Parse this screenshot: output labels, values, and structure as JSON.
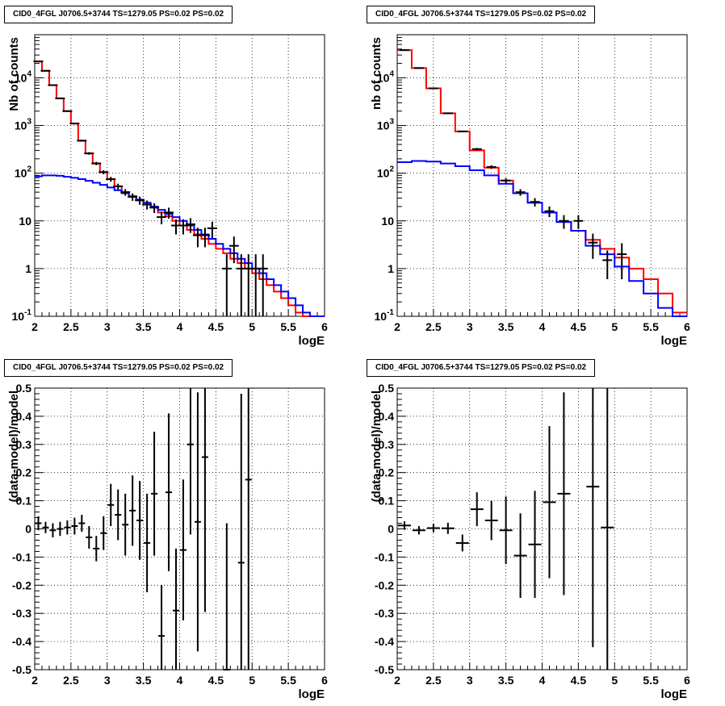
{
  "chart_data": [
    {
      "type": "line",
      "title": "CID0_4FGL J0706.5+3744 TS=1279.05 PS=0.02 PS=0.02",
      "xlabel": "logE",
      "ylabel": "Nb of counts",
      "xlim": [
        2,
        6
      ],
      "ylim": [
        0.1,
        80000
      ],
      "yscale": "log",
      "grid": true,
      "x_ticks": [
        "2",
        "2.5",
        "3",
        "3.5",
        "4",
        "4.5",
        "5",
        "5.5",
        "6"
      ],
      "y_ticks": [
        "10^-1",
        "1",
        "10",
        "10^2",
        "10^3",
        "10^4"
      ],
      "series": [
        {
          "color": "#ff0000",
          "kind": "step",
          "edges": [
            2.0,
            2.1,
            2.2,
            2.3,
            2.4,
            2.5,
            2.6,
            2.7,
            2.8,
            2.9,
            3.0,
            3.1,
            3.2,
            3.3,
            3.4,
            3.5,
            3.6,
            3.7,
            3.8,
            3.9,
            4.0,
            4.1,
            4.2,
            4.3,
            4.4,
            4.5,
            4.6,
            4.7,
            4.8,
            4.9,
            5.0,
            5.1,
            5.2,
            5.3,
            5.4,
            5.5,
            5.6,
            5.7,
            5.8,
            5.9,
            6.0
          ],
          "values": [
            22000,
            14000,
            7000,
            3700,
            2000,
            1100,
            480,
            260,
            160,
            105,
            75,
            53,
            40,
            32,
            27,
            22,
            19,
            15,
            12.5,
            10,
            8,
            6.5,
            5.2,
            4.2,
            3.3,
            2.6,
            2.1,
            1.6,
            1.3,
            1.0,
            0.8,
            0.6,
            0.45,
            0.33,
            0.24,
            0.17,
            0.12,
            0.1,
            0.1,
            0.1
          ]
        },
        {
          "color": "#0000ff",
          "kind": "step",
          "edges": [
            2.0,
            2.1,
            2.2,
            2.3,
            2.4,
            2.5,
            2.6,
            2.7,
            2.8,
            2.9,
            3.0,
            3.1,
            3.2,
            3.3,
            3.4,
            3.5,
            3.6,
            3.7,
            3.8,
            3.9,
            4.0,
            4.1,
            4.2,
            4.3,
            4.4,
            4.5,
            4.6,
            4.7,
            4.8,
            4.9,
            5.0,
            5.1,
            5.2,
            5.3,
            5.4,
            5.5,
            5.6,
            5.7,
            5.8,
            5.9,
            6.0
          ],
          "values": [
            86,
            90,
            90,
            88,
            84,
            80,
            75,
            69,
            63,
            57,
            50,
            44,
            38,
            33,
            28,
            24,
            20,
            17,
            14,
            12,
            10,
            8,
            6.5,
            5.2,
            4.2,
            3.3,
            2.6,
            2.1,
            1.6,
            1.3,
            1.0,
            0.8,
            0.6,
            0.45,
            0.33,
            0.24,
            0.17,
            0.12,
            0.1,
            0.1
          ]
        },
        {
          "color": "#000000",
          "kind": "points",
          "x": [
            2.05,
            2.15,
            2.25,
            2.35,
            2.45,
            2.55,
            2.65,
            2.75,
            2.85,
            2.95,
            3.05,
            3.15,
            3.25,
            3.35,
            3.45,
            3.55,
            3.65,
            3.75,
            3.85,
            3.95,
            4.05,
            4.15,
            4.25,
            4.35,
            4.45,
            4.65,
            4.75,
            4.85,
            4.95,
            5.05,
            5.15
          ],
          "y": [
            22000,
            14000,
            7000,
            3700,
            2000,
            1100,
            480,
            260,
            160,
            105,
            75,
            53,
            40,
            32,
            27,
            22,
            19,
            12,
            15,
            8,
            8,
            8.5,
            5,
            5,
            7,
            1,
            3,
            1,
            1,
            1,
            1
          ],
          "yerr": [
            150,
            120,
            84,
            61,
            45,
            33,
            22,
            16,
            13,
            10,
            8.7,
            7.3,
            6.3,
            5.7,
            5.2,
            4.7,
            4.4,
            3.5,
            3.9,
            2.8,
            2.8,
            2.9,
            2.2,
            2.2,
            2.6,
            1,
            1.7,
            1,
            1,
            1,
            1
          ]
        }
      ]
    },
    {
      "type": "line",
      "title": "CID0_4FGL J0706.5+3744 TS=1279.05 PS=0.02 PS=0.02",
      "xlabel": "logE",
      "ylabel": "nb of counts",
      "xlim": [
        2,
        6
      ],
      "ylim": [
        0.1,
        80000
      ],
      "yscale": "log",
      "grid": true,
      "x_ticks": [
        "2",
        "2.5",
        "3",
        "3.5",
        "4",
        "4.5",
        "5",
        "5.5",
        "6"
      ],
      "y_ticks": [
        "10^-1",
        "1",
        "10",
        "10^2",
        "10^3",
        "10^4"
      ],
      "series": [
        {
          "color": "#ff0000",
          "kind": "step",
          "edges": [
            2.0,
            2.2,
            2.4,
            2.6,
            2.8,
            3.0,
            3.2,
            3.4,
            3.6,
            3.8,
            4.0,
            4.2,
            4.4,
            4.6,
            4.8,
            5.0,
            5.2,
            5.4,
            5.6,
            5.8,
            6.0
          ],
          "values": [
            38000,
            16000,
            6000,
            1800,
            750,
            300,
            130,
            70,
            38,
            24,
            15,
            9.5,
            6.2,
            4.0,
            2.6,
            1.7,
            1.0,
            0.6,
            0.3,
            0.12
          ],
          "clip_below": 0.1
        },
        {
          "color": "#0000ff",
          "kind": "step",
          "edges": [
            2.0,
            2.2,
            2.4,
            2.6,
            2.8,
            3.0,
            3.2,
            3.4,
            3.6,
            3.8,
            4.0,
            4.2,
            4.4,
            4.6,
            4.8,
            5.0,
            5.2,
            5.4,
            5.6,
            5.8,
            6.0
          ],
          "values": [
            170,
            180,
            175,
            160,
            140,
            115,
            90,
            60,
            38,
            24,
            15,
            9.5,
            6.2,
            3.0,
            2.0,
            1.1,
            0.55,
            0.3,
            0.15,
            0.1
          ]
        },
        {
          "color": "#000000",
          "kind": "points",
          "x": [
            2.1,
            2.3,
            2.5,
            2.7,
            2.9,
            3.1,
            3.3,
            3.5,
            3.7,
            3.9,
            4.1,
            4.3,
            4.5,
            4.7,
            4.9,
            5.1
          ],
          "y": [
            38000,
            16000,
            6000,
            1800,
            750,
            320,
            135,
            70,
            40,
            25,
            16,
            10,
            10,
            3.5,
            1.5,
            2
          ],
          "yerr": [
            195,
            126,
            77,
            42,
            27,
            18,
            11.6,
            8.4,
            6.3,
            5,
            4,
            3.2,
            3.2,
            1.9,
            0.9,
            1.4
          ]
        }
      ]
    },
    {
      "type": "scatter",
      "title": "CID0_4FGL J0706.5+3744 TS=1279.05 PS=0.02 PS=0.02",
      "xlabel": "logE",
      "ylabel": "(data-model)/model",
      "xlim": [
        2,
        6
      ],
      "ylim": [
        -0.5,
        0.5
      ],
      "grid": true,
      "x_ticks": [
        "2",
        "2.5",
        "3",
        "3.5",
        "4",
        "4.5",
        "5",
        "5.5",
        "6"
      ],
      "y_ticks": [
        "-0.5",
        "-0.4",
        "-0.3",
        "-0.2",
        "-0.1",
        "0",
        "0.1",
        "0.2",
        "0.3",
        "0.4",
        "0.5"
      ],
      "points": {
        "x": [
          2.05,
          2.15,
          2.25,
          2.35,
          2.45,
          2.55,
          2.65,
          2.75,
          2.85,
          2.95,
          3.05,
          3.15,
          3.25,
          3.35,
          3.45,
          3.55,
          3.65,
          3.75,
          3.85,
          3.95,
          4.05,
          4.15,
          4.25,
          4.35,
          4.65,
          4.85,
          4.95
        ],
        "y": [
          0.02,
          0.005,
          -0.005,
          0,
          0.005,
          0.01,
          0.02,
          -0.03,
          -0.07,
          -0.015,
          0.085,
          0.05,
          0.015,
          0.065,
          0.03,
          -0.05,
          0.125,
          -0.38,
          0.13,
          -0.29,
          -0.075,
          0.3,
          0.025,
          0.255,
          -0.5,
          -0.12,
          0.175
        ],
        "yerr": [
          0.025,
          0.02,
          0.025,
          0.025,
          0.025,
          0.03,
          0.03,
          0.04,
          0.045,
          0.06,
          0.075,
          0.09,
          0.11,
          0.125,
          0.14,
          0.175,
          0.22,
          0.18,
          0.28,
          0.22,
          0.25,
          0.32,
          0.46,
          0.55,
          0.52,
          0.6,
          0.72
        ]
      }
    },
    {
      "type": "scatter",
      "title": "CID0_4FGL J0706.5+3744 TS=1279.05 PS=0.02 PS=0.02",
      "xlabel": "logE",
      "ylabel": "(data-model)/model",
      "xlim": [
        2,
        6
      ],
      "ylim": [
        -0.5,
        0.5
      ],
      "grid": true,
      "x_ticks": [
        "2",
        "2.5",
        "3",
        "3.5",
        "4",
        "4.5",
        "5",
        "5.5",
        "6"
      ],
      "y_ticks": [
        "-0.5",
        "-0.4",
        "-0.3",
        "-0.2",
        "-0.1",
        "0",
        "0.1",
        "0.2",
        "0.3",
        "0.4",
        "0.5"
      ],
      "points": {
        "x": [
          2.1,
          2.3,
          2.5,
          2.7,
          2.9,
          3.1,
          3.3,
          3.5,
          3.7,
          3.9,
          4.1,
          4.3,
          4.7,
          4.9
        ],
        "y": [
          0.012,
          -0.005,
          0.003,
          0.002,
          -0.05,
          0.07,
          0.03,
          -0.005,
          -0.095,
          -0.055,
          0.095,
          0.125,
          0.15,
          0.005
        ],
        "yerr": [
          0.015,
          0.015,
          0.015,
          0.02,
          0.03,
          0.06,
          0.07,
          0.12,
          0.15,
          0.19,
          0.27,
          0.36,
          0.57,
          0.7
        ]
      }
    }
  ]
}
